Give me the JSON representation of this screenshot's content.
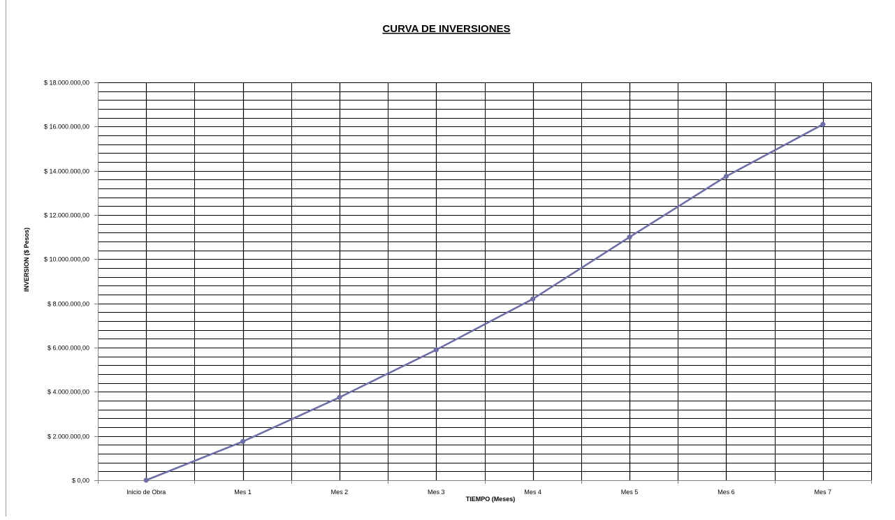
{
  "chart_data": {
    "type": "line",
    "title": "CURVA DE INVERSIONES",
    "xlabel": "TIEMPO (Meses)",
    "ylabel": "INVERSION ($ Pesos)",
    "categories": [
      "Inicio de Obra",
      "Mes 1",
      "Mes 2",
      "Mes 3",
      "Mes 4",
      "Mes 5",
      "Mes 6",
      "Mes 7"
    ],
    "series": [
      {
        "values": [
          0,
          1750000,
          3750000,
          5900000,
          8200000,
          11000000,
          13750000,
          16100000
        ]
      }
    ],
    "ylim": [
      0,
      18000000
    ],
    "yticks": [
      0,
      2000000,
      4000000,
      6000000,
      8000000,
      10000000,
      12000000,
      14000000,
      16000000,
      18000000
    ],
    "ytick_labels": [
      "$ 0,00",
      "$ 2.000.000,00",
      "$ 4.000.000,00",
      "$ 6.000.000,00",
      "$ 8.000.000,00",
      "$ 10.000.000,00",
      "$ 12.000.000,00",
      "$ 14.000.000,00",
      "$ 16.000.000,00",
      "$ 18.000.000,00"
    ],
    "grid": true,
    "line_color": "#6e6ea6",
    "grid_color": "#000000"
  }
}
